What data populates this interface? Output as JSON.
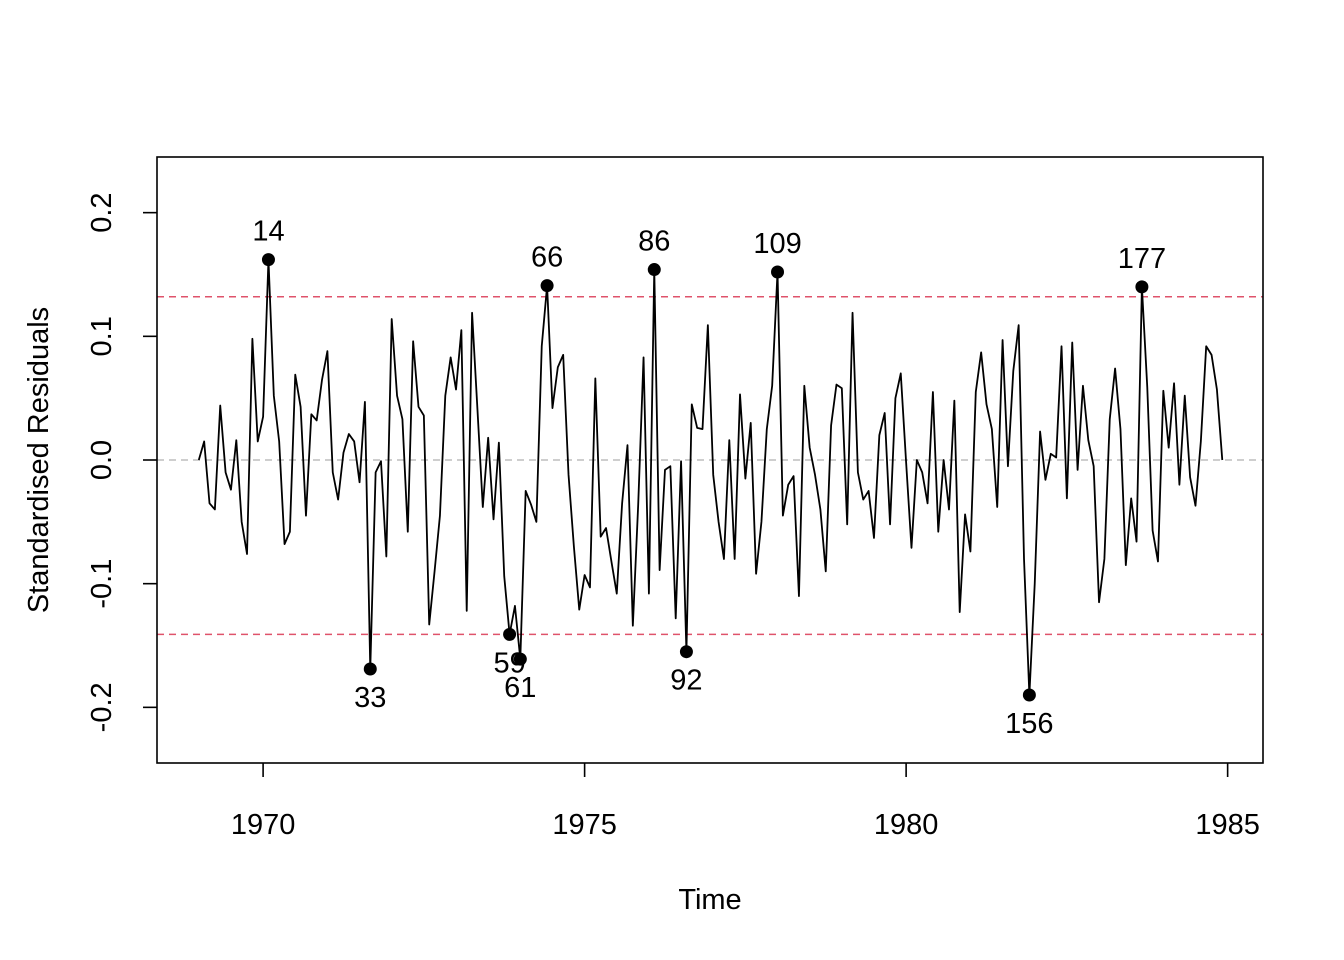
{
  "chart_data": {
    "type": "line",
    "title": "",
    "xlabel": "Time",
    "ylabel": "Standardised Residuals",
    "xlim": [
      1968.35,
      1985.55
    ],
    "ylim": [
      -0.245,
      0.245
    ],
    "x_ticks": [
      1970,
      1975,
      1980,
      1985
    ],
    "x_tick_labels": [
      "1970",
      "1975",
      "1980",
      "1985"
    ],
    "y_ticks": [
      -0.2,
      -0.1,
      0.0,
      0.1,
      0.2
    ],
    "y_tick_labels": [
      "-0.2",
      "-0.1",
      "0.0",
      "0.1",
      "0.2"
    ],
    "x_start": 1969.0,
    "frequency": 12,
    "reference_lines": [
      {
        "y": 0.132,
        "style": "dashed",
        "color": "#DF536B"
      },
      {
        "y": -0.141,
        "style": "dashed",
        "color": "#DF536B"
      },
      {
        "y": 0.0,
        "style": "dashed",
        "color": "#BEBEBE"
      }
    ],
    "outliers": [
      {
        "index": 14,
        "label": "14",
        "value": 0.162
      },
      {
        "index": 33,
        "label": "33",
        "value": -0.169
      },
      {
        "index": 59,
        "label": "59",
        "value": -0.141
      },
      {
        "index": 61,
        "label": "61",
        "value": -0.161
      },
      {
        "index": 66,
        "label": "66",
        "value": 0.141
      },
      {
        "index": 86,
        "label": "86",
        "value": 0.154
      },
      {
        "index": 92,
        "label": "92",
        "value": -0.155
      },
      {
        "index": 109,
        "label": "109",
        "value": 0.152
      },
      {
        "index": 156,
        "label": "156",
        "value": -0.19
      },
      {
        "index": 177,
        "label": "177",
        "value": 0.14
      }
    ],
    "series": [
      {
        "values": [
          0.0,
          0.015,
          -0.035,
          -0.04,
          0.044,
          -0.01,
          -0.024,
          0.016,
          -0.05,
          -0.076,
          0.098,
          0.015,
          0.035,
          0.162,
          0.052,
          0.015,
          -0.068,
          -0.058,
          0.069,
          0.043,
          -0.045,
          0.037,
          0.032,
          0.065,
          0.088,
          -0.01,
          -0.032,
          0.006,
          0.021,
          0.015,
          -0.018,
          0.047,
          -0.169,
          -0.01,
          -0.001,
          -0.078,
          0.114,
          0.052,
          0.033,
          -0.058,
          0.096,
          0.043,
          0.036,
          -0.133,
          -0.09,
          -0.045,
          0.052,
          0.083,
          0.057,
          0.105,
          -0.122,
          0.119,
          0.041,
          -0.038,
          0.018,
          -0.048,
          0.014,
          -0.094,
          -0.141,
          -0.118,
          -0.161,
          -0.025,
          -0.036,
          -0.05,
          0.092,
          0.141,
          0.042,
          0.075,
          0.085,
          -0.012,
          -0.07,
          -0.121,
          -0.093,
          -0.103,
          0.066,
          -0.062,
          -0.055,
          -0.082,
          -0.108,
          -0.035,
          0.012,
          -0.134,
          -0.036,
          0.083,
          -0.108,
          0.154,
          -0.089,
          -0.008,
          -0.005,
          -0.128,
          -0.001,
          -0.155,
          0.045,
          0.026,
          0.025,
          0.109,
          -0.012,
          -0.05,
          -0.08,
          0.016,
          -0.08,
          0.053,
          -0.015,
          0.03,
          -0.092,
          -0.05,
          0.025,
          0.06,
          0.152,
          -0.045,
          -0.02,
          -0.013,
          -0.11,
          0.06,
          0.01,
          -0.012,
          -0.04,
          -0.09,
          0.028,
          0.061,
          0.058,
          -0.052,
          0.119,
          -0.01,
          -0.032,
          -0.025,
          -0.063,
          0.02,
          0.038,
          -0.052,
          0.05,
          0.07,
          -0.002,
          -0.071,
          0.0,
          -0.01,
          -0.035,
          0.055,
          -0.058,
          0.0,
          -0.04,
          0.048,
          -0.123,
          -0.044,
          -0.074,
          0.055,
          0.087,
          0.045,
          0.025,
          -0.038,
          0.097,
          -0.005,
          0.072,
          0.109,
          -0.08,
          -0.19,
          -0.1,
          0.023,
          -0.016,
          0.005,
          0.002,
          0.092,
          -0.031,
          0.095,
          -0.008,
          0.06,
          0.016,
          -0.005,
          -0.115,
          -0.08,
          0.033,
          0.074,
          0.025,
          -0.085,
          -0.031,
          -0.066,
          0.14,
          0.059,
          -0.057,
          -0.082,
          0.056,
          0.01,
          0.062,
          -0.02,
          0.052,
          -0.014,
          -0.037,
          0.015,
          0.092,
          0.085,
          0.057,
          0.0
        ]
      }
    ]
  }
}
